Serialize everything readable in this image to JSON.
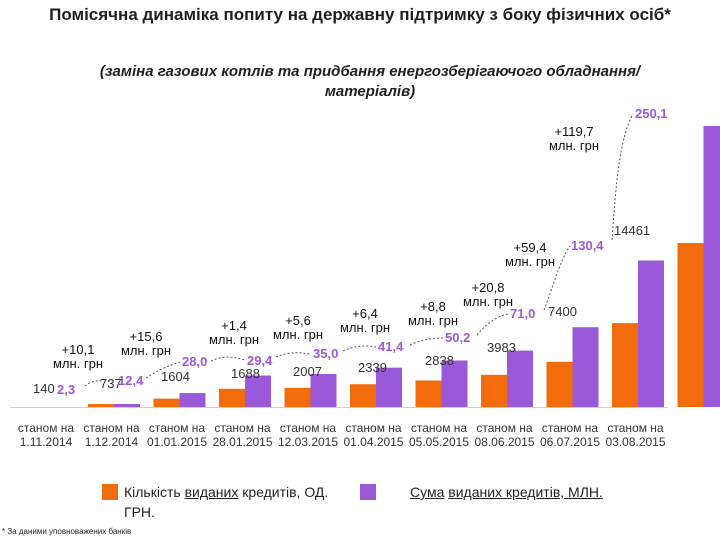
{
  "title": "Помісячна динаміка попиту на державну підтримку з боку фізичних осіб*",
  "subtitle": "(заміна газових котлів  та  придбання енергозберігаючого обладнання/матеріалів)",
  "chart_data": {
    "type": "bar",
    "categories": [
      [
        "станом на",
        "1.11.2014"
      ],
      [
        "станом на",
        "1.12.2014"
      ],
      [
        "станом на",
        "01.01.2015"
      ],
      [
        "станом на",
        "28.01.2015"
      ],
      [
        "станом на",
        "12.03.2015"
      ],
      [
        "станом на",
        "01.04.2015"
      ],
      [
        "станом на",
        "05.05.2015"
      ],
      [
        "станом на",
        "08.06.2015"
      ],
      [
        "станом на",
        "06.07.2015"
      ],
      [
        "станом на",
        "03.08.2015"
      ]
    ],
    "series": [
      {
        "name": "Кількість виданих кредитів, ОД.",
        "values": [
          140,
          737,
          1604,
          1688,
          2007,
          2339,
          2838,
          3983,
          7400,
          14461
        ],
        "labels": [
          "140",
          "737",
          "1604",
          "1688",
          "2007",
          "2339",
          "2838",
          "3983",
          "7400",
          "14461"
        ]
      },
      {
        "name": "Сума виданих кредитів, МЛН. ГРН.",
        "values": [
          2.3,
          12.4,
          28.0,
          29.4,
          35.0,
          41.4,
          50.2,
          71.0,
          130.4,
          250.1
        ],
        "labels": [
          "2,3",
          "12,4",
          "28,0",
          "29,4",
          "35,0",
          "41,4",
          "50,2",
          "71,0",
          "130,4",
          "250,1"
        ]
      }
    ],
    "increments": [
      [
        "+10,1",
        "млн. грн"
      ],
      [
        "+15,6",
        "млн. грн"
      ],
      [
        "+1,4",
        "млн. грн"
      ],
      [
        "+5,6",
        "млн. грн"
      ],
      [
        "+6,4",
        "млн. грн"
      ],
      [
        "+8,8",
        "млн. грн"
      ],
      [
        "+20,8",
        "млн. грн"
      ],
      [
        "+59,4",
        "млн. грн"
      ],
      [
        "+119,7",
        "млн. грн"
      ]
    ],
    "colors": {
      "count": "#f26c0c",
      "sum": "#9a59d9",
      "gridline": "#cfcfcf"
    }
  },
  "legend": {
    "count_label_1": "Кількість",
    "count_label_2": "виданих",
    "count_label_3": "кредитів, ОД.",
    "count_label_4": "ГРН.",
    "sum_label_1": "Сума",
    "sum_label_2": "виданих кредитів, МЛН."
  },
  "footnote": "* За даними уповноважених банків"
}
